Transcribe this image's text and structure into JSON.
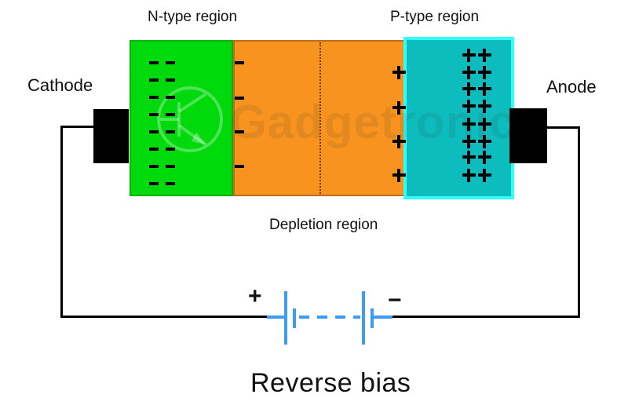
{
  "diagram": {
    "title": "Reverse bias",
    "watermark": "Gadgetronicx",
    "regions": {
      "n": {
        "label": "N-type region",
        "carrier_symbol": "minus",
        "carrier_columns": 2,
        "carrier_rows": 8,
        "fill": "#00d90b",
        "border": "#09b409"
      },
      "depletion": {
        "label": "Depletion region",
        "fill": "#f7931e",
        "border": "#bf6a1c",
        "left_edge_symbol": "minus",
        "left_edge_count": 4,
        "right_edge_symbol": "plus",
        "right_edge_count": 4
      },
      "p": {
        "label": "P-type region",
        "carrier_symbol": "plus",
        "carrier_columns": 2,
        "carrier_rows": 8,
        "fill": "#0dbdbd",
        "border": "#2ffefe"
      }
    },
    "terminals": {
      "cathode_label": "Cathode",
      "anode_label": "Anode"
    },
    "battery": {
      "positive_label": "+",
      "negative_label": "−",
      "color": "#3d9bf5"
    },
    "wire_color": "#000000"
  }
}
